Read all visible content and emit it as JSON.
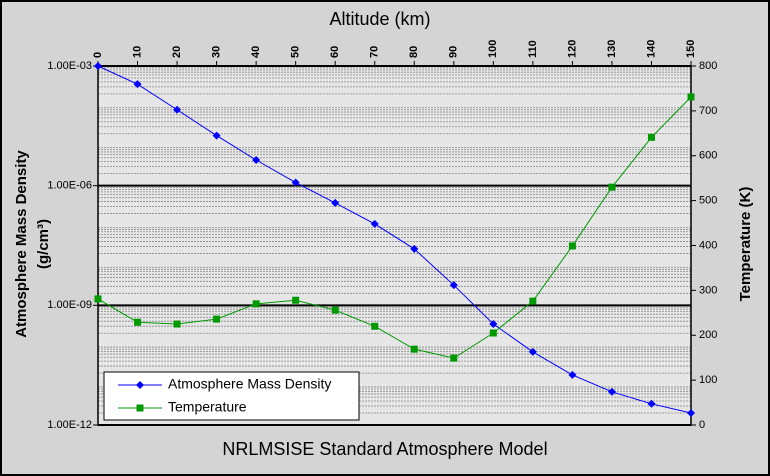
{
  "chart_data": {
    "type": "line",
    "title": "Altitude (km)",
    "subtitle": "NRLMSISE Standard Atmosphere Model",
    "ylabel": [
      "Atmosphere Mass Density",
      "(g/cm³)"
    ],
    "y2label": "Temperature (K)",
    "x": [
      0,
      10,
      20,
      30,
      40,
      50,
      60,
      70,
      80,
      90,
      100,
      110,
      120,
      130,
      140,
      150
    ],
    "xlim": [
      0,
      150
    ],
    "xticks": [
      0,
      10,
      20,
      30,
      40,
      50,
      60,
      70,
      80,
      90,
      100,
      110,
      120,
      130,
      140,
      150
    ],
    "ylim": [
      1e-12,
      0.001
    ],
    "yscale": "log",
    "yticks": [
      {
        "value": 1e-12,
        "label": "1.00E-12"
      },
      {
        "value": 1e-09,
        "label": "1.00E-09"
      },
      {
        "value": 1e-06,
        "label": "1.00E-06"
      },
      {
        "value": 0.001,
        "label": "1.00E-03"
      }
    ],
    "yminorticks": [
      2e-12,
      3e-12,
      4e-12,
      5e-12,
      6e-12,
      7e-12,
      8e-12,
      9e-12,
      2e-11,
      3e-11,
      4e-11,
      5e-11,
      6e-11,
      7e-11,
      8e-11,
      9e-11,
      2e-10,
      3e-10,
      4e-10,
      5e-10,
      6e-10,
      7e-10,
      8e-10,
      9e-10,
      2e-09,
      3e-09,
      4e-09,
      5e-09,
      6e-09,
      7e-09,
      8e-09,
      9e-09,
      2e-08,
      3e-08,
      4e-08,
      5e-08,
      6e-08,
      7e-08,
      8e-08,
      9e-08,
      2e-07,
      3e-07,
      4e-07,
      5e-07,
      6e-07,
      7e-07,
      8e-07,
      9e-07,
      2e-06,
      3e-06,
      4e-06,
      5e-06,
      6e-06,
      7e-06,
      8e-06,
      9e-06,
      2e-05,
      3e-05,
      4e-05,
      5e-05,
      6e-05,
      7e-05,
      8e-05,
      9e-05,
      0.0002,
      0.0003,
      0.0004,
      0.0005,
      0.0006,
      0.0007,
      0.0008,
      0.0009
    ],
    "y2lim": [
      0,
      800
    ],
    "y2ticks": [
      0,
      100,
      200,
      300,
      400,
      500,
      600,
      700,
      800
    ],
    "grid": true,
    "legend": "lower left",
    "series": [
      {
        "name": "Atmosphere Mass Density",
        "color": "#0000ff",
        "marker": "diamond",
        "values": [
          0.001,
          0.00035,
          8e-05,
          1.8e-05,
          4.4e-06,
          1.2e-06,
          3.7e-07,
          1.1e-07,
          2.6e-08,
          3.2e-09,
          3.4e-10,
          6.8e-11,
          1.8e-11,
          6.8e-12,
          3.4e-12,
          2e-12
        ]
      },
      {
        "name": "Temperature",
        "color": "#009900",
        "marker": "square",
        "axis": "y2",
        "values": [
          281,
          229,
          225,
          236,
          270,
          278,
          256,
          220,
          169,
          149,
          205,
          276,
          399,
          530,
          641,
          731
        ]
      }
    ]
  }
}
